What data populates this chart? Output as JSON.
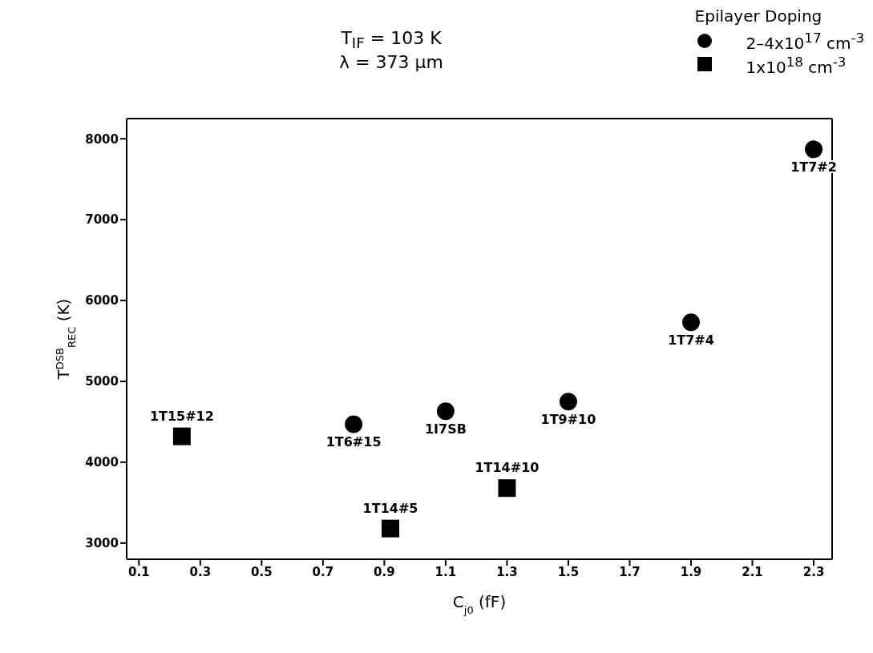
{
  "chart_data": {
    "type": "scatter",
    "title": "T$_{IF}$ = 103 K",
    "subtitle": "λ = 373 μm",
    "xlabel": "C$_{j0}$ (fF)",
    "ylabel": "T$^{DSB}$$_{REC}$ (K)",
    "legend_title": "Epilayer Doping",
    "legend": "top right",
    "xlim": [
      0.06,
      2.36
    ],
    "xticks": [
      0.1,
      0.3,
      0.5,
      0.7,
      0.9,
      1.1,
      1.3,
      1.5,
      1.7,
      1.9,
      2.1,
      2.3
    ],
    "ylim": [
      2800,
      8250
    ],
    "yticks": [
      3000,
      4000,
      5000,
      6000,
      7000,
      8000
    ],
    "series": [
      {
        "name": "2–4x10$^{17}$ cm$^{-3}$",
        "color": "#000000",
        "marker": "circle",
        "x": [
          0.8,
          1.1,
          1.5,
          1.9,
          2.3
        ],
        "values": [
          4470,
          4630,
          4750,
          5730,
          7870
        ]
      },
      {
        "name": "1x10$^{18}$ cm$^{-3}$",
        "color": "#000000",
        "marker": "square",
        "x": [
          0.24,
          0.92,
          1.3
        ],
        "values": [
          4320,
          3180,
          3680
        ]
      }
    ],
    "annotations": [
      {
        "text": "1T6#15",
        "x": 0.8,
        "y": 4470
      },
      {
        "text": "1I7SB",
        "x": 1.1,
        "y": 4630
      },
      {
        "text": "1T9#10",
        "x": 1.5,
        "y": 4750
      },
      {
        "text": "1T7#4",
        "x": 1.9,
        "y": 5730
      },
      {
        "text": "1T7#2",
        "x": 2.3,
        "y": 7870
      },
      {
        "text": "1T15#12",
        "x": 0.24,
        "y": 4320
      },
      {
        "text": "1T14#5",
        "x": 0.92,
        "y": 3180
      },
      {
        "text": "1T14#10",
        "x": 1.3,
        "y": 3680
      }
    ]
  }
}
